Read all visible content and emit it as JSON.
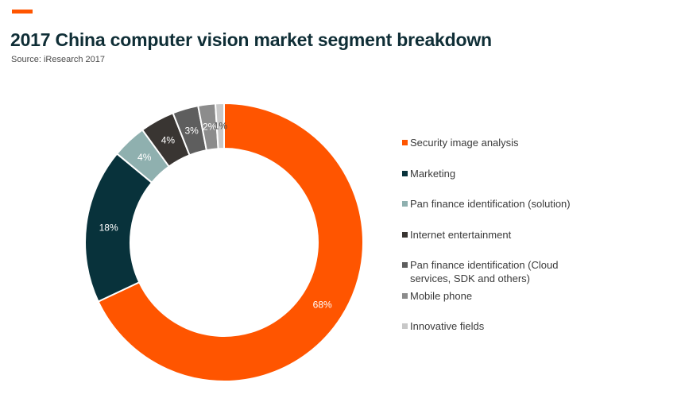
{
  "header": {
    "title": "2017 China computer vision market segment breakdown",
    "source": "Source: iResearch 2017",
    "accent_color": "#FF5500"
  },
  "chart_data": {
    "type": "pie",
    "variant": "donut",
    "title": "2017 China computer vision market segment breakdown",
    "legend_position": "right",
    "unit": "%",
    "slices": [
      {
        "label": "Security image analysis",
        "value": 68,
        "display": "68%",
        "color": "#FF5500",
        "text_color": "#ffffff"
      },
      {
        "label": "Marketing",
        "value": 18,
        "display": "18%",
        "color": "#08323B",
        "text_color": "#ffffff"
      },
      {
        "label": "Pan finance identification (solution)",
        "value": 4,
        "display": "4%",
        "color": "#8FB0AF",
        "text_color": "#ffffff"
      },
      {
        "label": "Internet entertainment",
        "value": 4,
        "display": "4%",
        "color": "#393532",
        "text_color": "#ffffff"
      },
      {
        "label": "Pan finance identification (Cloud services, SDK and others)",
        "value": 3,
        "display": "3%",
        "color": "#5E5E5E",
        "text_color": "#ffffff"
      },
      {
        "label": "Mobile phone",
        "value": 2,
        "display": "2%",
        "color": "#8C8C8C",
        "text_color": "#ffffff"
      },
      {
        "label": "Innovative fields",
        "value": 1,
        "display": "1%",
        "color": "#C8C8C8",
        "text_color": "#4a4a4a"
      }
    ]
  }
}
